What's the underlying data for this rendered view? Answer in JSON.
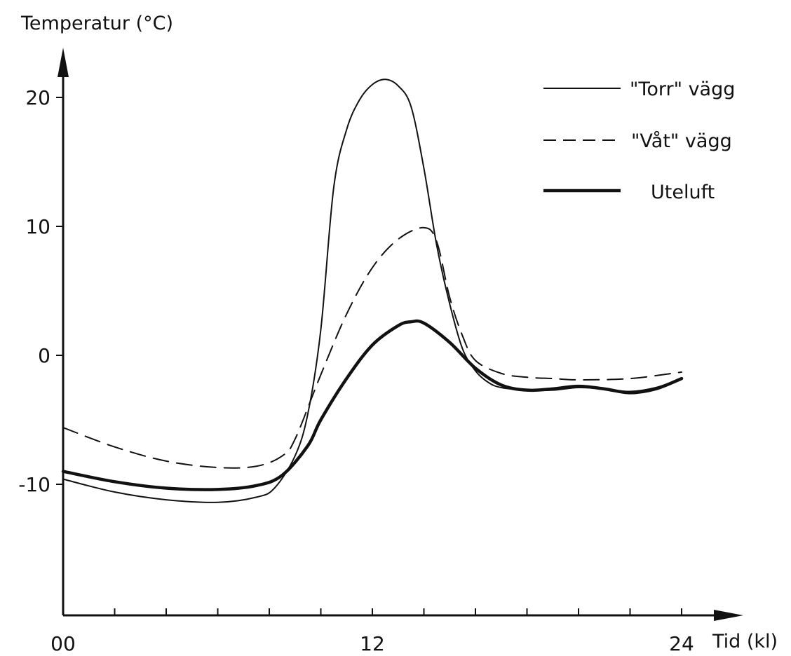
{
  "chart_data": {
    "type": "line",
    "ylabel": "Temperatur (°C)",
    "xlabel": "Tid (kl)",
    "xlim": [
      0,
      24
    ],
    "ylim": [
      -20,
      23
    ],
    "x_tick_labels": [
      {
        "value": 0,
        "label": "00"
      },
      {
        "value": 12,
        "label": "12"
      },
      {
        "value": 24,
        "label": "24"
      }
    ],
    "x_minor_ticks": [
      2,
      4,
      6,
      8,
      10,
      12,
      14,
      16,
      18,
      20,
      22
    ],
    "y_tick_labels": [
      {
        "value": 20,
        "label": "20"
      },
      {
        "value": 10,
        "label": "10"
      },
      {
        "value": 0,
        "label": "0"
      },
      {
        "value": -10,
        "label": "-10"
      }
    ],
    "legend_position": "top-right",
    "series": [
      {
        "name": "\"Torr\" vägg",
        "style": "solid-thin",
        "points": [
          [
            0,
            -9.6
          ],
          [
            2,
            -10.6
          ],
          [
            4,
            -11.2
          ],
          [
            6,
            -11.4
          ],
          [
            7.5,
            -11.0
          ],
          [
            8.2,
            -10.3
          ],
          [
            9,
            -7.8
          ],
          [
            9.5,
            -4.5
          ],
          [
            10,
            2.0
          ],
          [
            10.5,
            13.0
          ],
          [
            11,
            17.5
          ],
          [
            11.5,
            19.8
          ],
          [
            12,
            21.0
          ],
          [
            12.5,
            21.4
          ],
          [
            13,
            20.9
          ],
          [
            13.5,
            19.3
          ],
          [
            14,
            14.5
          ],
          [
            14.5,
            8.5
          ],
          [
            15,
            4.0
          ],
          [
            15.5,
            0.5
          ],
          [
            16,
            -1.2
          ],
          [
            16.5,
            -2.1
          ],
          [
            17,
            -2.5
          ],
          [
            18,
            -2.7
          ],
          [
            19,
            -2.7
          ],
          [
            20,
            -2.5
          ],
          [
            21,
            -2.6
          ],
          [
            22,
            -2.8
          ],
          [
            23,
            -2.5
          ],
          [
            24,
            -1.8
          ]
        ]
      },
      {
        "name": "\"Våt\" vägg",
        "style": "dashed",
        "points": [
          [
            0,
            -5.6
          ],
          [
            2,
            -7.1
          ],
          [
            4,
            -8.2
          ],
          [
            6,
            -8.7
          ],
          [
            7.5,
            -8.6
          ],
          [
            8.5,
            -7.8
          ],
          [
            9,
            -6.5
          ],
          [
            10,
            -1.5
          ],
          [
            11,
            3.2
          ],
          [
            12,
            6.8
          ],
          [
            13,
            9.0
          ],
          [
            14,
            9.9
          ],
          [
            14.5,
            8.8
          ],
          [
            15,
            4.5
          ],
          [
            15.5,
            1.5
          ],
          [
            16,
            -0.4
          ],
          [
            17,
            -1.4
          ],
          [
            18,
            -1.7
          ],
          [
            19,
            -1.8
          ],
          [
            20,
            -1.9
          ],
          [
            22,
            -1.8
          ],
          [
            24,
            -1.3
          ]
        ]
      },
      {
        "name": "Uteluft",
        "style": "solid-thick",
        "points": [
          [
            0,
            -9.0
          ],
          [
            2,
            -9.8
          ],
          [
            4,
            -10.3
          ],
          [
            6,
            -10.4
          ],
          [
            7.5,
            -10.1
          ],
          [
            8.5,
            -9.3
          ],
          [
            9.5,
            -7.0
          ],
          [
            10,
            -5.0
          ],
          [
            11,
            -1.8
          ],
          [
            12,
            0.8
          ],
          [
            13,
            2.3
          ],
          [
            13.5,
            2.6
          ],
          [
            14,
            2.5
          ],
          [
            15,
            1.0
          ],
          [
            16,
            -1.0
          ],
          [
            17,
            -2.3
          ],
          [
            18,
            -2.7
          ],
          [
            19,
            -2.6
          ],
          [
            20,
            -2.4
          ],
          [
            21,
            -2.6
          ],
          [
            22,
            -2.9
          ],
          [
            23,
            -2.6
          ],
          [
            24,
            -1.8
          ]
        ]
      }
    ]
  }
}
